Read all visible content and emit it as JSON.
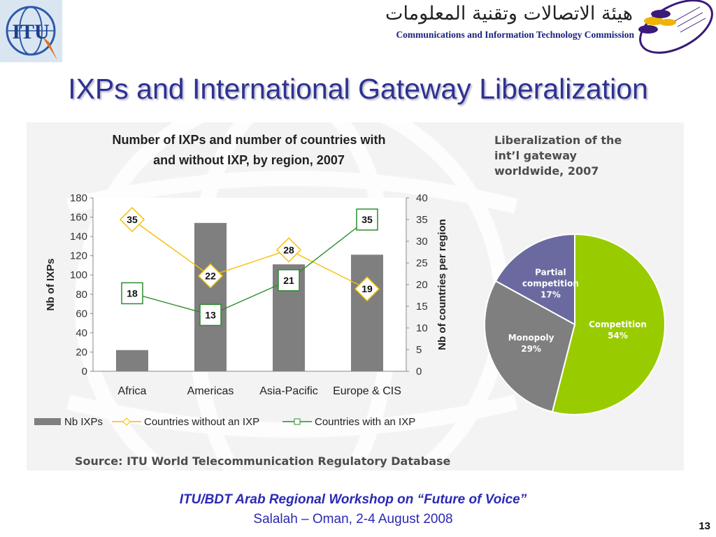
{
  "header": {
    "itu_logo_text": "ITU",
    "citc_arabic": "هيئة الاتصالات وتقنية المعلومات",
    "citc_english": "Communications and Information Technology Commission"
  },
  "slide_title": "IXPs and International Gateway Liberalization",
  "colors": {
    "title": "#2e3192",
    "bars": "#7f7f7f",
    "without_ixp": "#f5c000",
    "with_ixp": "#2e8b2e",
    "competition": "#99cc00",
    "monopoly": "#7f7f7f",
    "partial": "#6a6aa0",
    "footer": "#2a2ab3"
  },
  "chart_data": [
    {
      "type": "bar",
      "title": "Number of IXPs and number of countries with and  without IXP, by region, 2007",
      "title_lines": [
        "Number of IXPs and number of countries with",
        "and  without IXP, by region, 2007"
      ],
      "categories": [
        "Africa",
        "Americas",
        "Asia-Pacific",
        "Europe & CIS"
      ],
      "ylabel": "Nb of IXPs",
      "y2label": "Nb of countries per region",
      "ylim": [
        0,
        180
      ],
      "y2lim": [
        0,
        40
      ],
      "yticks": [
        "0",
        "20",
        "40",
        "60",
        "80",
        "100",
        "120",
        "140",
        "160",
        "180"
      ],
      "y2ticks": [
        "0",
        "5",
        "10",
        "15",
        "20",
        "25",
        "30",
        "35",
        "40"
      ],
      "series": [
        {
          "name": "Nb IXPs",
          "kind": "bar",
          "axis": "left",
          "values": [
            22,
            154,
            111,
            121
          ]
        },
        {
          "name": "Countries without an IXP",
          "kind": "line",
          "axis": "right",
          "marker": "diamond",
          "values": [
            35,
            22,
            28,
            19
          ],
          "labels": [
            "35",
            "22",
            "28",
            "19"
          ]
        },
        {
          "name": "Countries with an IXP",
          "kind": "line",
          "axis": "right",
          "marker": "square",
          "values": [
            18,
            13,
            21,
            35
          ],
          "labels": [
            "18",
            "13",
            "21",
            "35"
          ]
        }
      ],
      "legend_position": "bottom"
    },
    {
      "type": "pie",
      "title": "Liberalization of the int’l gateway worldwide,  2007",
      "title_lines": [
        "Liberalization of the",
        "int’l gateway",
        "worldwide,  2007"
      ],
      "slices": [
        {
          "label_lines": [
            "Competition",
            "54%"
          ],
          "name": "Competition",
          "value": 54
        },
        {
          "label_lines": [
            "Monopoly",
            "29%"
          ],
          "name": "Monopoly",
          "value": 29
        },
        {
          "label_lines": [
            "Partial",
            "competition",
            "17%"
          ],
          "name": "Partial competition",
          "value": 17
        }
      ]
    }
  ],
  "source": "Source: ITU World Telecommunication Regulatory Database",
  "footer": {
    "line1": "ITU/BDT Arab Regional Workshop on “Future of Voice”",
    "line2": "Salalah – Oman, 2-4 August 2008",
    "page_number": "13"
  }
}
